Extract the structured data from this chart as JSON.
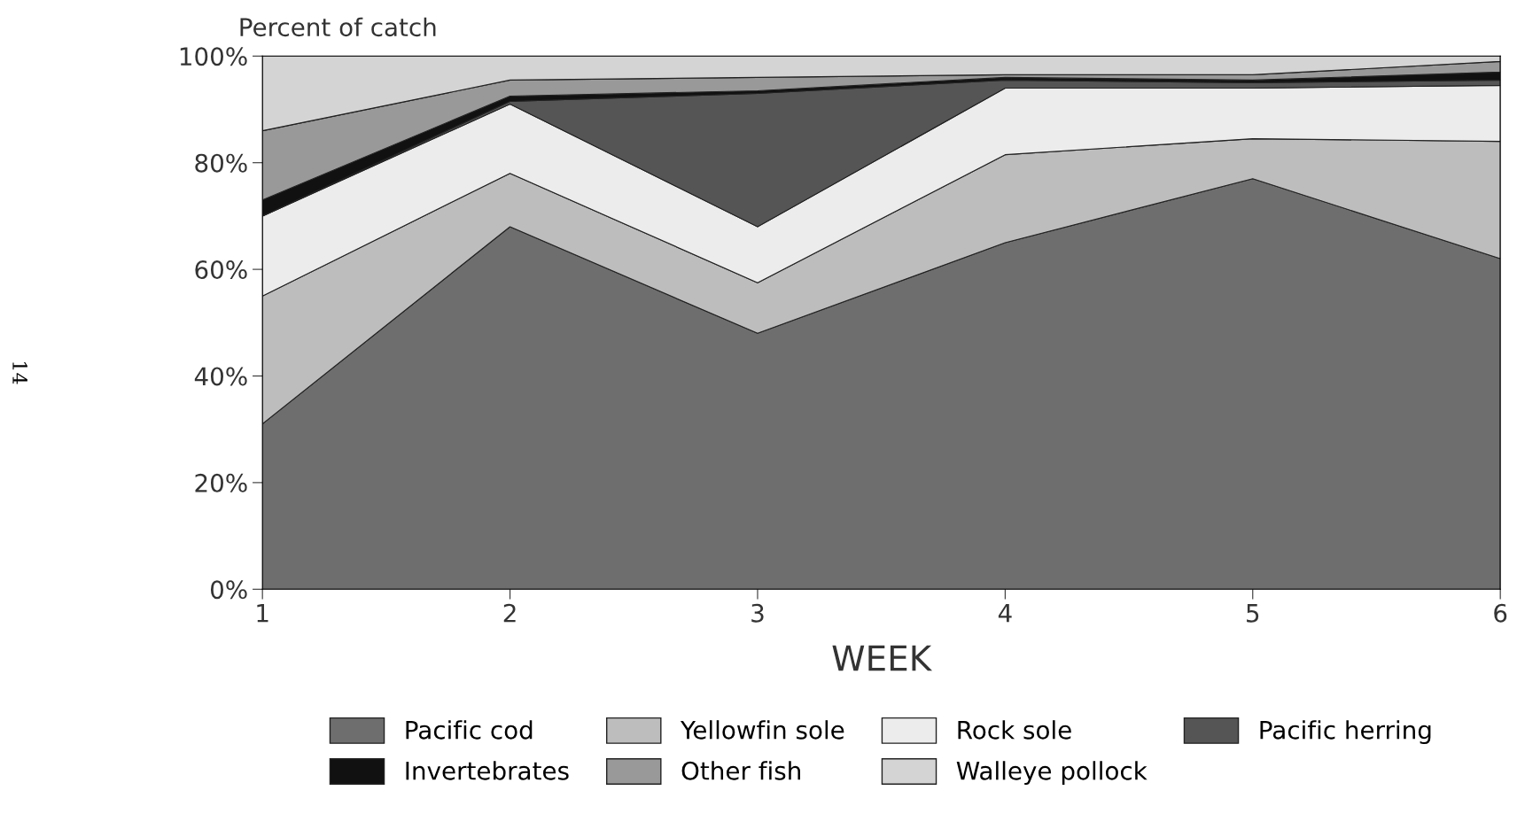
{
  "chart_data": {
    "type": "area",
    "stacked": true,
    "ylabel": "Percent of catch",
    "xlabel": "WEEK",
    "x": [
      1,
      2,
      3,
      4,
      5,
      6
    ],
    "series": [
      {
        "name": "Pacific cod",
        "color": "#6e6e6e",
        "values": [
          31,
          68,
          48,
          65,
          77,
          62
        ]
      },
      {
        "name": "Yellowfin sole",
        "color": "#bdbdbd",
        "values": [
          24,
          10,
          9.5,
          16.5,
          7.5,
          22
        ]
      },
      {
        "name": "Rock sole",
        "color": "#ececec",
        "values": [
          15,
          13,
          10.5,
          12.5,
          9.5,
          10.5
        ]
      },
      {
        "name": "Pacific herring",
        "color": "#555555",
        "values": [
          0,
          0.5,
          25,
          1.5,
          1,
          1
        ]
      },
      {
        "name": "Invertebrates",
        "color": "#111111",
        "values": [
          3,
          1,
          0.5,
          0.5,
          0.5,
          1.5
        ]
      },
      {
        "name": "Other fish",
        "color": "#999999",
        "values": [
          13,
          3,
          2.5,
          0.5,
          1,
          2
        ]
      },
      {
        "name": "Walleye pollock",
        "color": "#d4d4d4",
        "values": [
          14,
          4.5,
          4,
          3.5,
          3.5,
          1
        ]
      }
    ],
    "xlim": [
      1,
      6
    ],
    "xticks": [
      1,
      2,
      3,
      4,
      5,
      6
    ],
    "ylim": [
      0,
      100
    ],
    "yticks": [
      {
        "value": 0,
        "label": "0%"
      },
      {
        "value": 20,
        "label": "20%"
      },
      {
        "value": 40,
        "label": "40%"
      },
      {
        "value": 60,
        "label": "60%"
      },
      {
        "value": 80,
        "label": "80%"
      },
      {
        "value": 100,
        "label": "100%"
      }
    ],
    "grid": false,
    "legend": "bottom",
    "annotations": [
      "14"
    ]
  }
}
